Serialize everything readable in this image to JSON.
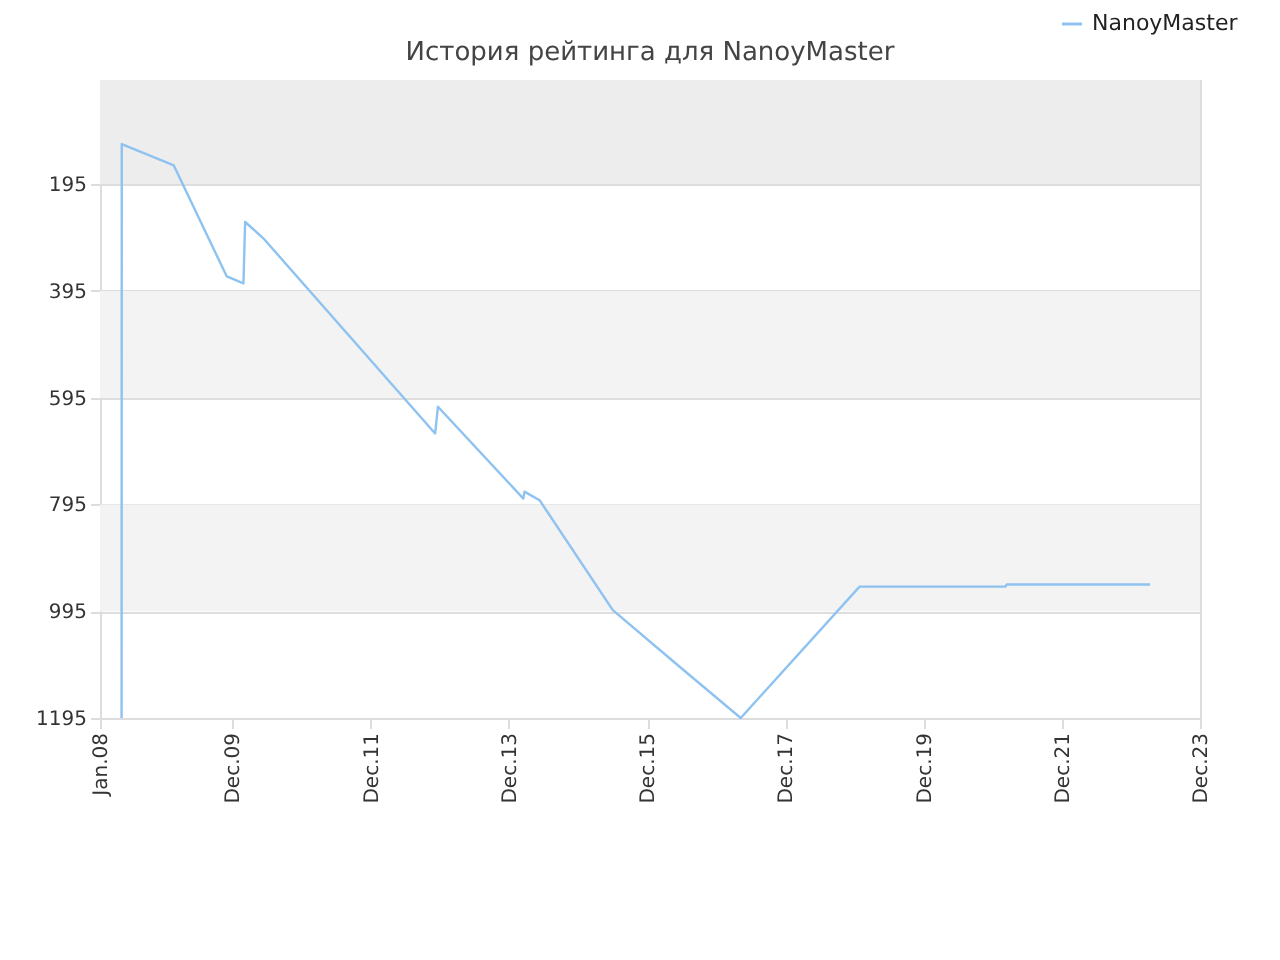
{
  "chart_data": {
    "type": "line",
    "title": "История рейтинга для NanoyMaster",
    "x": [
      "2008-04-24",
      "2008-04-25",
      "2009-01-25",
      "2009-11-01",
      "2010-01-28",
      "2010-02-06",
      "2010-05-12",
      "2012-11-06",
      "2012-11-21",
      "2014-02-15",
      "2014-02-21",
      "2014-05-12",
      "2015-06-03",
      "2016-05-21",
      "2017-04-09",
      "2018-12-28",
      "2021-02-06",
      "2021-02-12",
      "2023-03-12"
    ],
    "series": [
      {
        "name": "NanoyMaster",
        "color": "#8ec2f0",
        "values": [
          1195,
          120,
          160,
          368,
          381,
          266,
          296,
          662,
          612,
          784,
          771,
          787,
          993,
          1099,
          1195,
          949,
          949,
          945,
          945
        ]
      }
    ],
    "xlim": [
      "2008-01-01",
      "2023-12-01"
    ],
    "xticks": [
      {
        "value": "2008-01-01",
        "label": "Jan.08"
      },
      {
        "value": "2009-12-01",
        "label": "Dec.09"
      },
      {
        "value": "2011-12-01",
        "label": "Dec.11"
      },
      {
        "value": "2013-12-01",
        "label": "Dec.13"
      },
      {
        "value": "2015-12-01",
        "label": "Dec.15"
      },
      {
        "value": "2017-12-01",
        "label": "Dec.17"
      },
      {
        "value": "2019-12-01",
        "label": "Dec.19"
      },
      {
        "value": "2021-12-01",
        "label": "Dec.21"
      },
      {
        "value": "2023-12-01",
        "label": "Dec.23"
      }
    ],
    "ylim": [
      1195,
      0
    ],
    "yticks": [
      195,
      395,
      595,
      795,
      995,
      1195
    ],
    "bands": [
      {
        "axis": "y",
        "from": 0,
        "to": 195,
        "color": "#ededed"
      },
      {
        "axis": "y",
        "from": 395,
        "to": 595,
        "color": "#f3f3f3"
      },
      {
        "axis": "y",
        "from": 795,
        "to": 995,
        "color": "#f3f3f3"
      }
    ],
    "grid": "y",
    "legend": "top right",
    "marker": "none",
    "line_style": "solid"
  }
}
